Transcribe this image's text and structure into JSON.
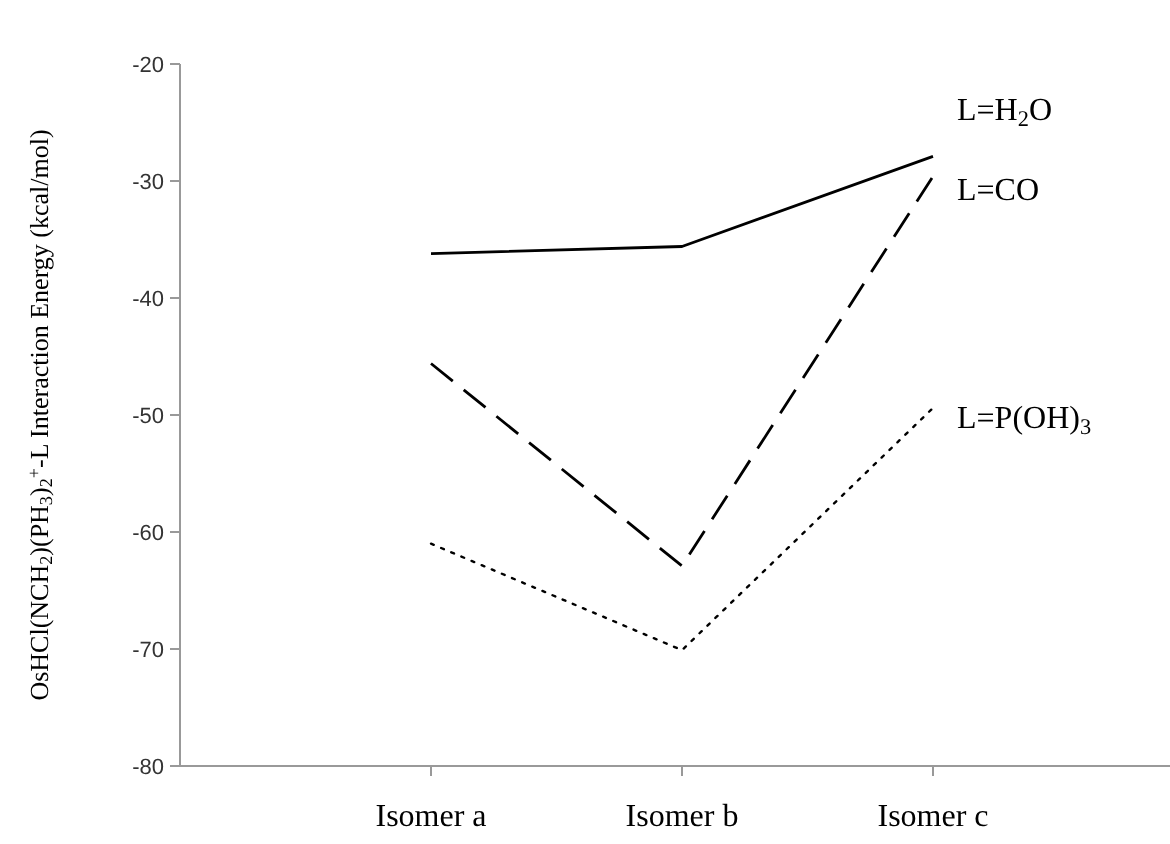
{
  "chart_data": {
    "type": "line",
    "ylabel": "OsHCl(NCH$_{2}$)(PH$_{3}$)$_{2}$$^{+}$-L Interaction Energy (kcal/mol)",
    "categories": [
      "Isomer a",
      "Isomer b",
      "Isomer c"
    ],
    "ylim": [
      -80,
      -20
    ],
    "yticks": [
      -80,
      -70,
      -60,
      -50,
      -40,
      -30,
      -20
    ],
    "grid": false,
    "marker": "none",
    "series": [
      {
        "name": "L=H$_{2}$O",
        "color": "#000000",
        "line_style": "solid",
        "values": [
          -36.2,
          -35.6,
          -27.9
        ]
      },
      {
        "name": "L=CO",
        "color": "#000000",
        "line_style": "dashed",
        "values": [
          -45.6,
          -62.9,
          -29.6
        ]
      },
      {
        "name": "L=P(OH)$_{3}$",
        "color": "#000000",
        "line_style": "dotted",
        "values": [
          -61,
          -70.1,
          -49.4
        ]
      }
    ]
  }
}
